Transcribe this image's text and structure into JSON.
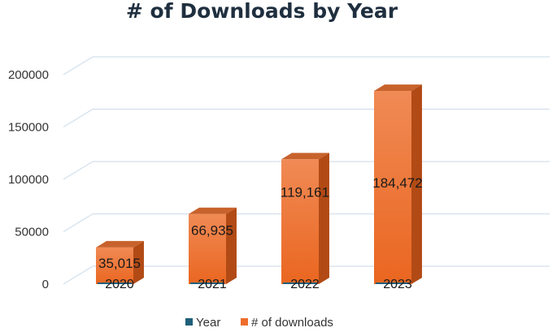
{
  "chart_data": {
    "type": "bar",
    "title": "# of Downloads by Year",
    "xlabel": "",
    "ylabel": "",
    "categories": [
      "2020",
      "2021",
      "2022",
      "2023"
    ],
    "series": [
      {
        "name": "Year",
        "values": [
          2020,
          2021,
          2022,
          2023
        ],
        "color": "#1f5f7a"
      },
      {
        "name": "# of downloads",
        "values": [
          35015,
          66935,
          119161,
          184472
        ],
        "color": "#ef6d2a"
      }
    ],
    "data_labels": [
      "35,015",
      "66,935",
      "119,161",
      "184,472"
    ],
    "y_ticks": [
      "0",
      "50000",
      "100000",
      "150000",
      "200000"
    ],
    "ylim": [
      0,
      200000
    ],
    "grid": true,
    "legend": "bottom",
    "style": "3d-column"
  }
}
